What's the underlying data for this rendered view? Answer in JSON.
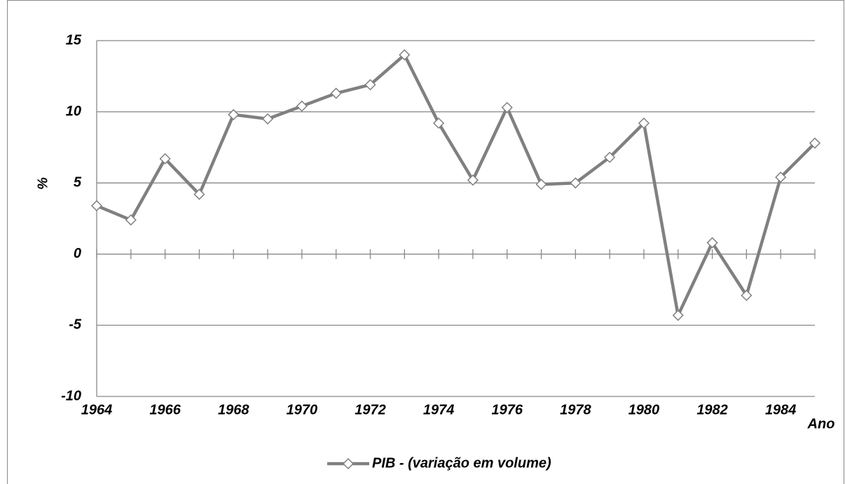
{
  "chart_data": {
    "type": "line",
    "x": [
      1964,
      1965,
      1966,
      1967,
      1968,
      1969,
      1970,
      1971,
      1972,
      1973,
      1974,
      1975,
      1976,
      1977,
      1978,
      1979,
      1980,
      1981,
      1982,
      1983,
      1984,
      1985
    ],
    "series": [
      {
        "name": "PIB - (variação em volume)",
        "color": "#808080",
        "values": [
          3.4,
          2.4,
          6.7,
          4.2,
          9.8,
          9.5,
          10.4,
          11.3,
          11.9,
          14.0,
          9.2,
          5.2,
          10.3,
          4.9,
          5.0,
          6.8,
          9.2,
          -4.3,
          0.8,
          -2.9,
          5.4,
          7.8
        ]
      }
    ],
    "xlim": [
      1964,
      1985
    ],
    "xticks": [
      1964,
      1966,
      1968,
      1970,
      1972,
      1974,
      1976,
      1978,
      1980,
      1982,
      1984
    ],
    "ylim": [
      -10,
      15
    ],
    "yticks": [
      -10,
      -5,
      0,
      5,
      10,
      15
    ],
    "y_label": "%",
    "x_label": "Ano",
    "grid": true,
    "legend": "bottom"
  }
}
